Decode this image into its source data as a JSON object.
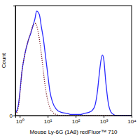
{
  "chart_data": {
    "type": "line",
    "x_label": "Mouse Ly-6G (1A8) redFluor™ 710",
    "y_label": "Count",
    "log": "x",
    "xlim": [
      0.7,
      10000
    ],
    "xticks": [
      {
        "value": 1,
        "label": "10⁰"
      },
      {
        "value": 10,
        "label": "10¹"
      },
      {
        "value": 100,
        "label": "10²"
      },
      {
        "value": 1000,
        "label": "10³"
      },
      {
        "value": 10000,
        "label": "10⁴"
      }
    ],
    "ylim": [
      0,
      100
    ],
    "yticks": [
      0
    ],
    "x": [
      0.7,
      0.8,
      0.9,
      1,
      1.2,
      1.5,
      2,
      2.5,
      3,
      3.5,
      4,
      5,
      6,
      7,
      8,
      10,
      12,
      15,
      20,
      30,
      50,
      70,
      100,
      150,
      200,
      300,
      400,
      500,
      600,
      700,
      800,
      900,
      1000,
      1200,
      1500,
      2000,
      3000,
      5000,
      10000
    ],
    "series": [
      {
        "color": "#2a2aff",
        "line_style": "solid",
        "values": [
          2,
          5,
          10,
          20,
          40,
          55,
          68,
          75,
          82,
          88,
          95,
          92,
          80,
          70,
          58,
          38,
          22,
          12,
          6,
          3,
          2,
          1,
          1,
          1,
          2,
          3,
          5,
          10,
          22,
          38,
          50,
          55,
          52,
          30,
          10,
          2,
          0,
          0,
          0
        ]
      },
      {
        "color": "#7a1f2b",
        "line_style": "dotted",
        "values": [
          1,
          3,
          8,
          18,
          40,
          55,
          68,
          76,
          82,
          84,
          82,
          70,
          55,
          40,
          28,
          14,
          7,
          3,
          1,
          0,
          0,
          0,
          0,
          0,
          0,
          0,
          0,
          0,
          0,
          0,
          0,
          0,
          0,
          0,
          0,
          0,
          0,
          0,
          0
        ]
      }
    ]
  }
}
